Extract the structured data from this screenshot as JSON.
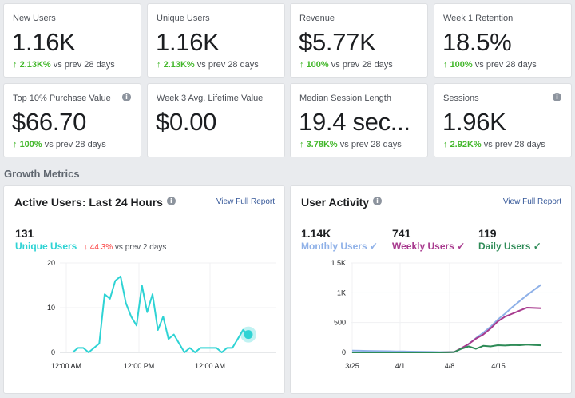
{
  "kpis": [
    {
      "label": "New Users",
      "value": "1.16K",
      "delta": "2.13K%",
      "suffix": "vs prev 28 days",
      "info": false
    },
    {
      "label": "Unique Users",
      "value": "1.16K",
      "delta": "2.13K%",
      "suffix": "vs prev 28 days",
      "info": false
    },
    {
      "label": "Revenue",
      "value": "$5.77K",
      "delta": "100%",
      "suffix": "vs prev 28 days",
      "info": false
    },
    {
      "label": "Week 1 Retention",
      "value": "18.5%",
      "delta": "100%",
      "suffix": "vs prev 28 days",
      "info": false
    },
    {
      "label": "Top 10% Purchase Value",
      "value": "$66.70",
      "delta": "100%",
      "suffix": "vs prev 28 days",
      "info": true
    },
    {
      "label": "Week 3 Avg. Lifetime Value",
      "value": "$0.00",
      "delta": "",
      "suffix": "",
      "info": false
    },
    {
      "label": "Median Session Length",
      "value": "19.4 sec...",
      "delta": "3.78K%",
      "suffix": "vs prev 28 days",
      "info": false
    },
    {
      "label": "Sessions",
      "value": "1.96K",
      "delta": "2.92K%",
      "suffix": "vs prev 28 days",
      "info": true
    }
  ],
  "section_title": "Growth Metrics",
  "active_users": {
    "title": "Active Users: Last 24 Hours",
    "link": "View Full Report",
    "count": "131",
    "metric": "Unique Users",
    "delta": "44.3%",
    "delta_suffix": "vs prev 2 days"
  },
  "user_activity": {
    "title": "User Activity",
    "link": "View Full Report",
    "monthly": {
      "value": "1.14K",
      "label": "Monthly Users"
    },
    "weekly": {
      "value": "741",
      "label": "Weekly Users"
    },
    "daily": {
      "value": "119",
      "label": "Daily Users"
    }
  },
  "colors": {
    "up": "#42b72a",
    "down": "#fa3e3e",
    "unique": "#2ed3d4",
    "monthly": "#8fb1e8",
    "weekly": "#a83a8e",
    "daily": "#2e8b57",
    "link": "#365899"
  },
  "chart_data": [
    {
      "type": "line",
      "title": "Active Users: Last 24 Hours",
      "x_ticks": [
        "12:00 AM",
        "12:00 PM",
        "12:00 AM"
      ],
      "ylim": [
        0,
        20
      ],
      "y_ticks": [
        0,
        10,
        20
      ],
      "series": [
        {
          "name": "Unique Users",
          "values": [
            0,
            1,
            1,
            0,
            1,
            2,
            13,
            12,
            16,
            17,
            11,
            8,
            6,
            15,
            9,
            13,
            5,
            8,
            3,
            4,
            2,
            0,
            1,
            0,
            1,
            1,
            1,
            1,
            0,
            1,
            1,
            3,
            5,
            4
          ]
        }
      ]
    },
    {
      "type": "line",
      "title": "User Activity",
      "x_ticks": [
        "3/25",
        "4/1",
        "4/8",
        "4/15"
      ],
      "ylim": [
        0,
        1500
      ],
      "y_ticks": [
        "0",
        "500",
        "1K",
        "1.5K"
      ],
      "series": [
        {
          "name": "Monthly Users",
          "values": [
            30,
            28,
            26,
            24,
            22,
            20,
            18,
            16,
            14,
            12,
            10,
            8,
            6,
            5,
            5,
            60,
            140,
            240,
            330,
            430,
            550,
            650,
            760,
            860,
            960,
            1050,
            1140
          ]
        },
        {
          "name": "Weekly Users",
          "values": [
            0,
            0,
            0,
            0,
            0,
            0,
            0,
            0,
            0,
            0,
            0,
            0,
            0,
            2,
            5,
            70,
            140,
            230,
            300,
            400,
            520,
            600,
            650,
            700,
            750,
            745,
            741
          ]
        },
        {
          "name": "Daily Users",
          "values": [
            0,
            0,
            0,
            0,
            0,
            0,
            0,
            0,
            0,
            0,
            0,
            0,
            0,
            2,
            5,
            60,
            100,
            60,
            110,
            100,
            120,
            115,
            125,
            120,
            130,
            125,
            119
          ]
        }
      ]
    }
  ]
}
